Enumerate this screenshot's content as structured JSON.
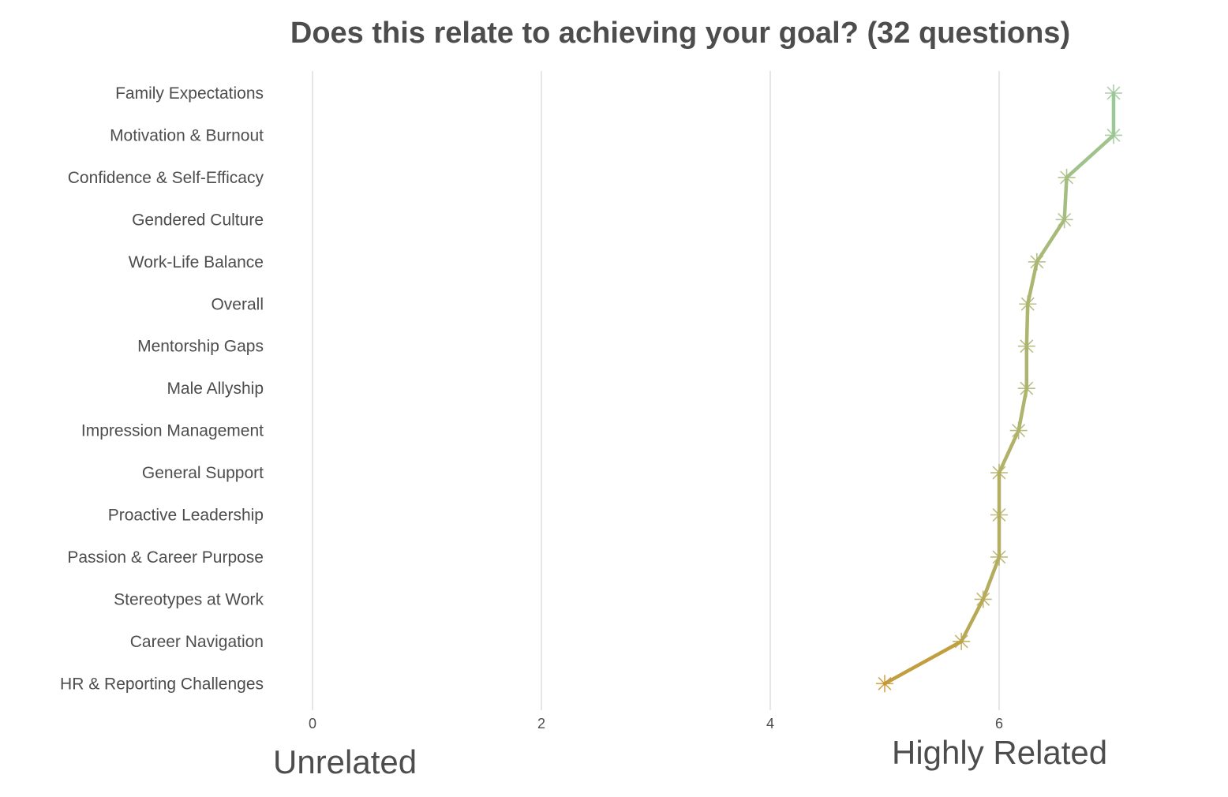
{
  "chart_data": {
    "type": "line",
    "title": "Does this relate to achieving your goal? (32 questions)",
    "xlabel": "",
    "ylabel": "",
    "xlim": [
      0,
      7
    ],
    "x_ticks": [
      0,
      2,
      4,
      6
    ],
    "x_tick_labels": [
      "0",
      "2",
      "4",
      "6"
    ],
    "grid": "vertical",
    "low_label": "Unrelated",
    "high_label": "Highly Related",
    "categories": [
      "Family Expectations",
      "Motivation & Burnout",
      "Confidence & Self-Efficacy",
      "Gendered Culture",
      "Work-Life Balance",
      "Overall",
      "Mentorship Gaps",
      "Male Allyship",
      "Impression Management",
      "General Support",
      "Proactive Leadership",
      "Passion & Career Purpose",
      "Stereotypes at Work",
      "Career Navigation",
      "HR & Reporting Challenges"
    ],
    "values": [
      7.0,
      7.0,
      6.59,
      6.57,
      6.33,
      6.25,
      6.24,
      6.24,
      6.17,
      6.0,
      6.0,
      6.0,
      5.86,
      5.67,
      5.0
    ],
    "colors": {
      "high": "#9cc796",
      "low": "#c9962f"
    }
  }
}
